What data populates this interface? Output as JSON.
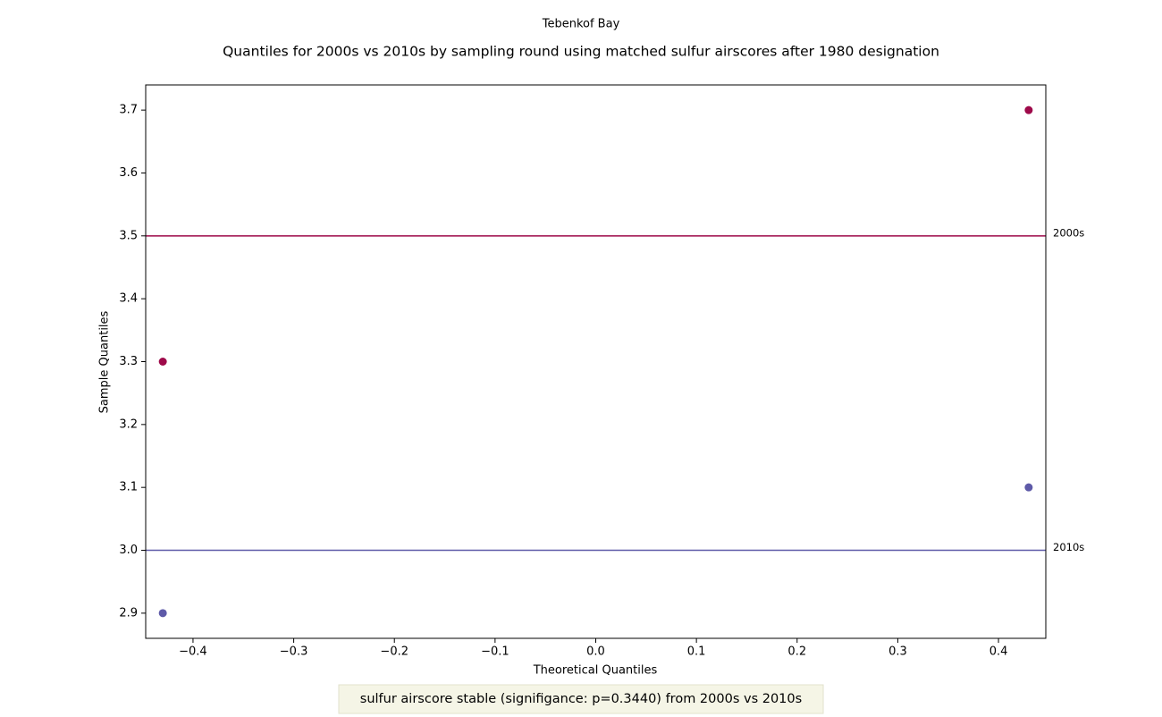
{
  "chart_data": {
    "type": "scatter",
    "suptitle": "Tebenkof Bay",
    "title": "Quantiles for 2000s vs 2010s by sampling round using matched sulfur airscores after 1980 designation",
    "xlabel": "Theoretical Quantiles",
    "ylabel": "Sample Quantiles",
    "annotation": "sulfur airscore stable (signifigance: p=0.3440) from 2000s vs 2010s",
    "series": [
      {
        "name": "2000s",
        "color": "#9e0a4a",
        "x": [
          -0.43,
          0.43
        ],
        "values": [
          3.3,
          3.7
        ],
        "mean": 3.5
      },
      {
        "name": "2010s",
        "color": "#5e5aa8",
        "x": [
          -0.43,
          0.43
        ],
        "values": [
          2.9,
          3.1
        ],
        "mean": 3.0
      }
    ],
    "xlim": [
      -0.447,
      0.447
    ],
    "ylim": [
      2.86,
      3.74
    ],
    "xticks": [
      {
        "value": -0.4,
        "label": "−0.4"
      },
      {
        "value": -0.3,
        "label": "−0.3"
      },
      {
        "value": -0.2,
        "label": "−0.2"
      },
      {
        "value": -0.1,
        "label": "−0.1"
      },
      {
        "value": 0,
        "label": "0.0"
      },
      0.1,
      0.2,
      0.3,
      0.4
    ],
    "yticks": [
      2.9,
      {
        "value": 3,
        "label": "3.0"
      },
      3.1,
      3.2,
      3.3,
      3.4,
      3.5,
      3.6,
      3.7
    ],
    "grid": false
  }
}
